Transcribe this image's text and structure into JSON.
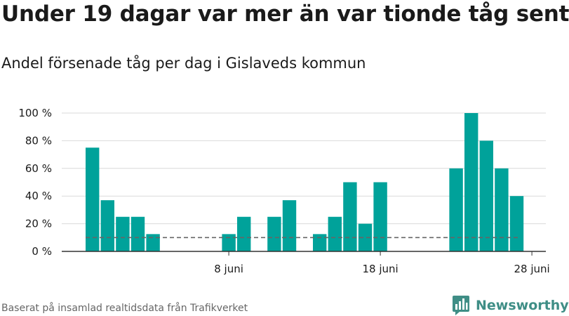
{
  "title": "Under 19 dagar var mer än var tionde tåg sent",
  "subtitle": "Andel försenade tåg per dag i Gislaveds kommun",
  "source": "Baserat på insamlad realtidsdata från Trafikverket",
  "brand": "Newsworthy",
  "colors": {
    "bar": "#00a29a",
    "reference_line": "#666666",
    "grid": "#d9d9d9",
    "axis": "#333333",
    "brand": "#3f8e86"
  },
  "chart_data": {
    "type": "bar",
    "x": [
      "2023-05-30",
      "2023-05-31",
      "2023-06-01",
      "2023-06-02",
      "2023-06-03",
      "2023-06-04",
      "2023-06-05",
      "2023-06-06",
      "2023-06-07",
      "2023-06-08",
      "2023-06-09",
      "2023-06-10",
      "2023-06-11",
      "2023-06-12",
      "2023-06-13",
      "2023-06-14",
      "2023-06-15",
      "2023-06-16",
      "2023-06-17",
      "2023-06-18",
      "2023-06-19",
      "2023-06-20",
      "2023-06-21",
      "2023-06-22",
      "2023-06-23",
      "2023-06-24",
      "2023-06-25",
      "2023-06-26",
      "2023-06-27",
      "2023-06-28",
      "2023-06-29"
    ],
    "values": [
      75,
      37,
      25,
      25,
      12.5,
      0,
      0,
      0,
      0,
      12.5,
      25,
      0,
      25,
      37,
      0,
      12.5,
      25,
      50,
      20,
      50,
      null,
      null,
      null,
      null,
      60,
      100,
      80,
      60,
      40,
      null,
      null
    ],
    "reference_value": 10,
    "ylim": [
      0,
      100
    ],
    "yticks": [
      0,
      20,
      40,
      60,
      80,
      100
    ],
    "ytick_labels": [
      "0 %",
      "20 %",
      "40 %",
      "60 %",
      "80 %",
      "100 %"
    ],
    "xticks": [
      {
        "date": "2023-06-08",
        "label": "8 juni"
      },
      {
        "date": "2023-06-18",
        "label": "18 juni"
      },
      {
        "date": "2023-06-28",
        "label": "28 juni"
      }
    ],
    "grid": true,
    "xlabel": "",
    "ylabel": ""
  }
}
